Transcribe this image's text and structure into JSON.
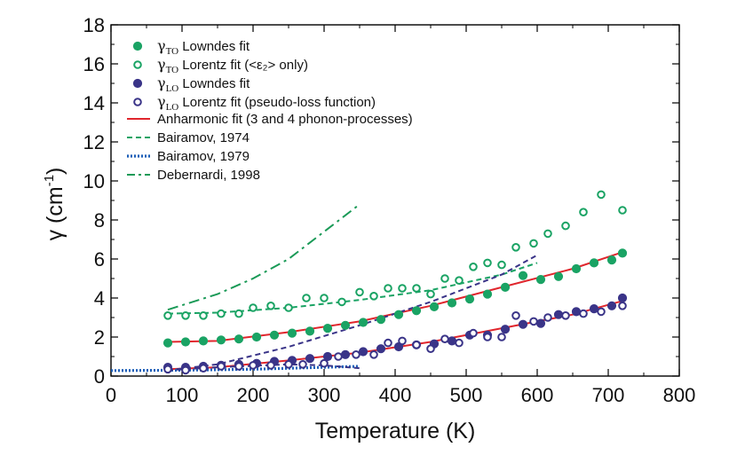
{
  "chart_data": {
    "type": "scatter",
    "xlabel": "Temperature (K)",
    "ylabel_symbol": "γ",
    "ylabel_unit": "(cm",
    "ylabel_exp": "-1",
    "ylabel_close": ")",
    "xlim": [
      0,
      800
    ],
    "ylim": [
      0,
      18
    ],
    "xticks": [
      0,
      100,
      200,
      300,
      400,
      500,
      600,
      700,
      800
    ],
    "yticks": [
      0,
      2,
      4,
      6,
      8,
      10,
      12,
      14,
      16,
      18
    ],
    "legend_position": "top-left",
    "colors": {
      "to": "#1aa364",
      "lo": "#3a3488",
      "fit": "#e0262d",
      "bairamov1974": "#1aa364",
      "bairamov1979": "#1d5fb8",
      "debernardi": "#1a9a57",
      "to_dashed": "#3a3488"
    },
    "series": [
      {
        "id": "to_lowndes",
        "name_sym": "γ",
        "name_sub": "TO",
        "name_rest": " Lowndes fit",
        "marker": "filled",
        "color_key": "to",
        "x": [
          80,
          105,
          130,
          155,
          180,
          205,
          230,
          255,
          280,
          305,
          330,
          355,
          380,
          405,
          430,
          455,
          480,
          505,
          530,
          555,
          580,
          605,
          630,
          655,
          680,
          705,
          720
        ],
        "y": [
          1.7,
          1.75,
          1.8,
          1.85,
          1.9,
          2.0,
          2.1,
          2.2,
          2.3,
          2.45,
          2.6,
          2.75,
          2.9,
          3.15,
          3.35,
          3.55,
          3.75,
          3.95,
          4.2,
          4.55,
          5.15,
          4.95,
          5.1,
          5.5,
          5.8,
          5.95,
          6.3
        ]
      },
      {
        "id": "to_lorentz",
        "name_sym": "γ",
        "name_sub": "TO",
        "name_rest": " Lorentz fit (<ε₂> only)",
        "marker": "open",
        "color_key": "to",
        "x": [
          80,
          105,
          130,
          155,
          180,
          200,
          225,
          250,
          275,
          300,
          325,
          350,
          370,
          390,
          410,
          430,
          450,
          470,
          490,
          510,
          530,
          550,
          570,
          595,
          615,
          640,
          665,
          690,
          720
        ],
        "y": [
          3.1,
          3.1,
          3.1,
          3.2,
          3.2,
          3.5,
          3.6,
          3.5,
          4.0,
          4.0,
          3.8,
          4.3,
          4.1,
          4.5,
          4.5,
          4.5,
          4.2,
          5.0,
          4.9,
          5.6,
          5.8,
          5.7,
          6.6,
          6.8,
          7.3,
          7.7,
          8.4,
          9.3,
          8.5
        ]
      },
      {
        "id": "lo_lowndes",
        "name_sym": "γ",
        "name_sub": "LO",
        "name_rest": " Lowndes fit",
        "marker": "filled",
        "color_key": "lo",
        "x": [
          80,
          105,
          130,
          155,
          180,
          205,
          230,
          255,
          280,
          305,
          330,
          355,
          380,
          405,
          430,
          455,
          480,
          505,
          530,
          555,
          580,
          605,
          630,
          655,
          680,
          705,
          720
        ],
        "y": [
          0.45,
          0.45,
          0.5,
          0.55,
          0.6,
          0.65,
          0.75,
          0.8,
          0.9,
          1.0,
          1.1,
          1.25,
          1.4,
          1.5,
          1.6,
          1.65,
          1.8,
          2.1,
          2.1,
          2.4,
          2.65,
          2.7,
          3.15,
          3.3,
          3.45,
          3.6,
          4.0
        ]
      },
      {
        "id": "lo_lorentz",
        "name_sym": "γ",
        "name_sub": "LO",
        "name_rest": " Lorentz fit (pseudo-loss function)",
        "marker": "open",
        "color_key": "lo",
        "x": [
          80,
          105,
          130,
          155,
          180,
          200,
          225,
          250,
          270,
          300,
          320,
          345,
          370,
          390,
          410,
          430,
          450,
          470,
          490,
          510,
          530,
          550,
          570,
          595,
          615,
          640,
          665,
          690,
          720
        ],
        "y": [
          0.35,
          0.3,
          0.4,
          0.5,
          0.5,
          0.55,
          0.55,
          0.6,
          0.6,
          0.65,
          1.0,
          1.1,
          1.1,
          1.7,
          1.8,
          1.6,
          1.4,
          1.9,
          1.7,
          2.2,
          2.0,
          2.0,
          3.1,
          2.8,
          3.0,
          3.1,
          3.2,
          3.3,
          3.6
        ]
      }
    ],
    "lines": [
      {
        "id": "anharmonic_fit",
        "name": "Anharmonic fit (3 and 4 phonon-processes)",
        "style": "solid",
        "color_key": "fit",
        "segments": [
          {
            "x": [
              80,
              150,
              250,
              350,
              450,
              550,
              650,
              720
            ],
            "y": [
              1.75,
              1.8,
              2.25,
              2.8,
              3.6,
              4.55,
              5.5,
              6.35
            ]
          },
          {
            "x": [
              80,
              150,
              250,
              350,
              450,
              550,
              650,
              720
            ],
            "y": [
              0.35,
              0.45,
              0.8,
              1.2,
              1.75,
              2.45,
              3.15,
              3.85
            ]
          }
        ]
      },
      {
        "id": "bairamov_1974",
        "name": "Bairamov, 1974",
        "style": "dashed",
        "color_key": "bairamov1974",
        "segments": [
          {
            "x": [
              80,
              150,
              250,
              350,
              450,
              550,
              600
            ],
            "y": [
              3.2,
              3.25,
              3.5,
              3.9,
              4.4,
              5.2,
              5.8
            ]
          }
        ]
      },
      {
        "id": "bairamov_1979",
        "name": "Bairamov, 1979",
        "style": "dotted",
        "color_key": "bairamov1979",
        "segments": [
          {
            "x": [
              0,
              100,
              200,
              300,
              350
            ],
            "y": [
              0.28,
              0.3,
              0.35,
              0.45,
              0.5
            ]
          }
        ]
      },
      {
        "id": "debernardi_1998",
        "name": "Debernardi, 1998",
        "style": "dashdot",
        "color_key": "debernardi",
        "segments": [
          {
            "x": [
              80,
              150,
              200,
              250,
              300,
              350
            ],
            "y": [
              3.4,
              4.2,
              5.0,
              6.0,
              7.4,
              8.8
            ]
          }
        ]
      },
      {
        "id": "unlabeled_dashed",
        "name": "",
        "style": "dashed",
        "color_key": "to_dashed",
        "segments": [
          {
            "x": [
              80,
              150,
              250,
              350,
              450,
              550,
              600
            ],
            "y": [
              0.3,
              0.6,
              1.5,
              2.6,
              3.8,
              5.2,
              6.2
            ]
          },
          {
            "x": [
              80,
              150,
              250,
              300,
              350
            ],
            "y": [
              0.3,
              0.45,
              0.6,
              0.55,
              0.4
            ]
          }
        ]
      }
    ]
  }
}
